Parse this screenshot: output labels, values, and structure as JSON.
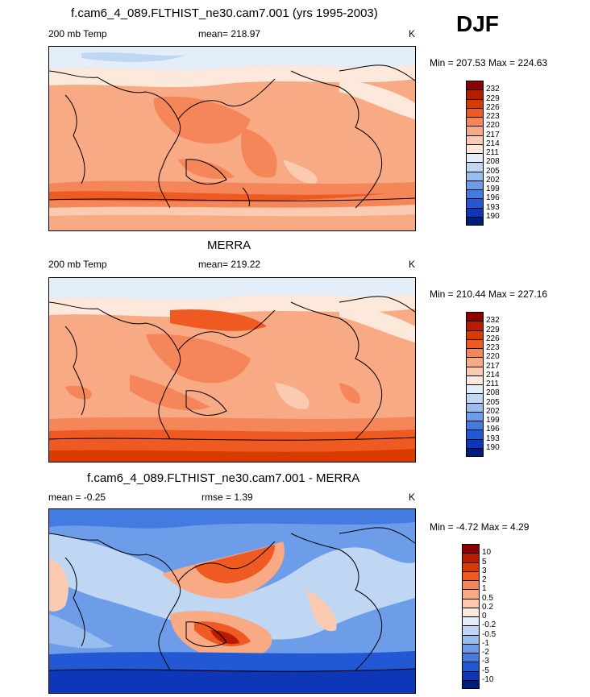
{
  "season": "DJF",
  "units": "K",
  "panels": [
    {
      "title": "f.cam6_4_089.FLTHIST_ne30.cam7.001 (yrs 1995-2003)",
      "left_label": "200 mb Temp",
      "center_label": "mean= 218.97",
      "right_label": "K",
      "minmax": "Min = 207.53 Max = 224.63",
      "colorbar": {
        "levels": [
          "232",
          "229",
          "226",
          "223",
          "220",
          "217",
          "214",
          "211",
          "208",
          "205",
          "202",
          "199",
          "196",
          "193",
          "190"
        ],
        "colors": [
          "#8b0000",
          "#b71c00",
          "#d83a00",
          "#ee5a22",
          "#f5865a",
          "#f8aa84",
          "#fbcbb1",
          "#fde9dc",
          "#e4eefa",
          "#c0d7f3",
          "#98bdee",
          "#6d9ce8",
          "#447be0",
          "#2258d3",
          "#0d36b8",
          "#001c80"
        ]
      }
    },
    {
      "title": "MERRA",
      "left_label": "200 mb Temp",
      "center_label": "mean= 219.22",
      "right_label": "K",
      "minmax": "Min = 210.44 Max = 227.16",
      "colorbar": {
        "levels": [
          "232",
          "229",
          "226",
          "223",
          "220",
          "217",
          "214",
          "211",
          "208",
          "205",
          "202",
          "199",
          "196",
          "193",
          "190"
        ],
        "colors": [
          "#8b0000",
          "#b71c00",
          "#d83a00",
          "#ee5a22",
          "#f5865a",
          "#f8aa84",
          "#fbcbb1",
          "#fde9dc",
          "#e4eefa",
          "#c0d7f3",
          "#98bdee",
          "#6d9ce8",
          "#447be0",
          "#2258d3",
          "#0d36b8",
          "#001c80"
        ]
      }
    },
    {
      "title": "f.cam6_4_089.FLTHIST_ne30.cam7.001 - MERRA",
      "left_label": "mean =  -0.25",
      "center_label": "rmse =   1.39",
      "right_label": "K",
      "minmax": "Min =  -4.72 Max =   4.29",
      "colorbar": {
        "levels": [
          "10",
          "5",
          "3",
          "2",
          "1",
          "0.5",
          "0.2",
          "0",
          "-0.2",
          "-0.5",
          "-1",
          "-2",
          "-3",
          "-5",
          "-10"
        ],
        "colors": [
          "#8b0000",
          "#b71c00",
          "#d83a00",
          "#ee5a22",
          "#f5865a",
          "#f8aa84",
          "#fbcbb1",
          "#fde9dc",
          "#e4eefa",
          "#c0d7f3",
          "#98bdee",
          "#6d9ce8",
          "#447be0",
          "#2258d3",
          "#0d36b8",
          "#001c80"
        ]
      }
    }
  ]
}
